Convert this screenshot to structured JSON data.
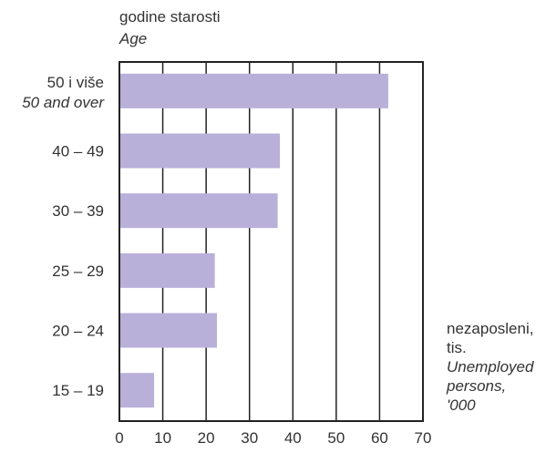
{
  "chart_data": {
    "type": "bar",
    "orientation": "horizontal",
    "y_title_primary": "godine starosti",
    "y_title_secondary": "Age",
    "x_title_lines": [
      "nezaposleni,",
      "tis."
    ],
    "x_title_secondary_lines": [
      "Unemployed",
      "persons,",
      "'000"
    ],
    "categories": [
      {
        "label": "50 i više",
        "label_secondary": "50 and over"
      },
      {
        "label": "40 – 49"
      },
      {
        "label": "30 – 39"
      },
      {
        "label": "25 – 29"
      },
      {
        "label": "20 – 24"
      },
      {
        "label": "15 – 19"
      }
    ],
    "values": [
      62,
      37,
      36.5,
      22,
      22.5,
      8
    ],
    "xlim": [
      0,
      70
    ],
    "x_ticks": [
      0,
      10,
      20,
      30,
      40,
      50,
      60,
      70
    ],
    "grid": "vertical",
    "colors": {
      "bar": "#b9b0da",
      "grid": "#222222",
      "frame": "#222222",
      "text": "#333333"
    }
  }
}
